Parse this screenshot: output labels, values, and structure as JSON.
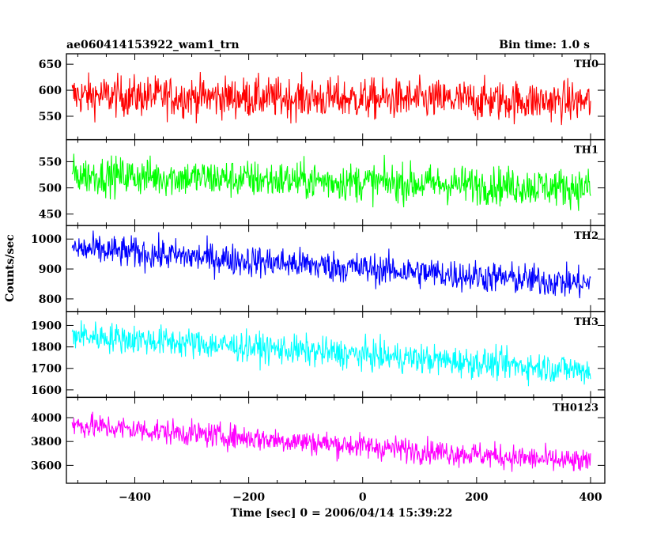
{
  "chart_data": {
    "type": "line",
    "title": "ae060414153922_wam1_trn",
    "bin_time_label": "Bin time: 1.0 s",
    "xlabel": "Time [sec] 0 = 2006/04/14 15:39:22",
    "ylabel": "Counts/sec",
    "xlim": [
      -520,
      425
    ],
    "x_ticks": [
      -400,
      -200,
      0,
      200,
      400
    ],
    "x_tick_labels": [
      "−400",
      "−200",
      "0",
      "200",
      "400"
    ],
    "x_range": [
      -510,
      400
    ],
    "grid": false,
    "panels": [
      {
        "name": "TH0",
        "color": "#ff0000",
        "ylim": [
          505,
          670
        ],
        "yticks": [
          550,
          600,
          650
        ],
        "trend": [
          [
            -510,
            590
          ],
          [
            400,
            578
          ]
        ],
        "noise": 28
      },
      {
        "name": "TH1",
        "color": "#00ff00",
        "ylim": [
          428,
          592
        ],
        "yticks": [
          450,
          500,
          550
        ],
        "trend": [
          [
            -510,
            525
          ],
          [
            400,
            500
          ]
        ],
        "noise": 26
      },
      {
        "name": "TH2",
        "color": "#0000ff",
        "ylim": [
          758,
          1045
        ],
        "yticks": [
          800,
          900,
          1000
        ],
        "trend": [
          [
            -510,
            968
          ],
          [
            400,
            850
          ]
        ],
        "noise": 38
      },
      {
        "name": "TH3",
        "color": "#00ffff",
        "ylim": [
          1565,
          1965
        ],
        "yticks": [
          1600,
          1700,
          1800,
          1900
        ],
        "trend": [
          [
            -510,
            1855
          ],
          [
            400,
            1690
          ]
        ],
        "noise": 50
      },
      {
        "name": "TH0123",
        "color": "#ff00ff",
        "ylim": [
          3450,
          4170
        ],
        "yticks": [
          3600,
          3800,
          4000
        ],
        "trend": [
          [
            -510,
            3940
          ],
          [
            400,
            3620
          ]
        ],
        "noise": 75
      }
    ]
  }
}
